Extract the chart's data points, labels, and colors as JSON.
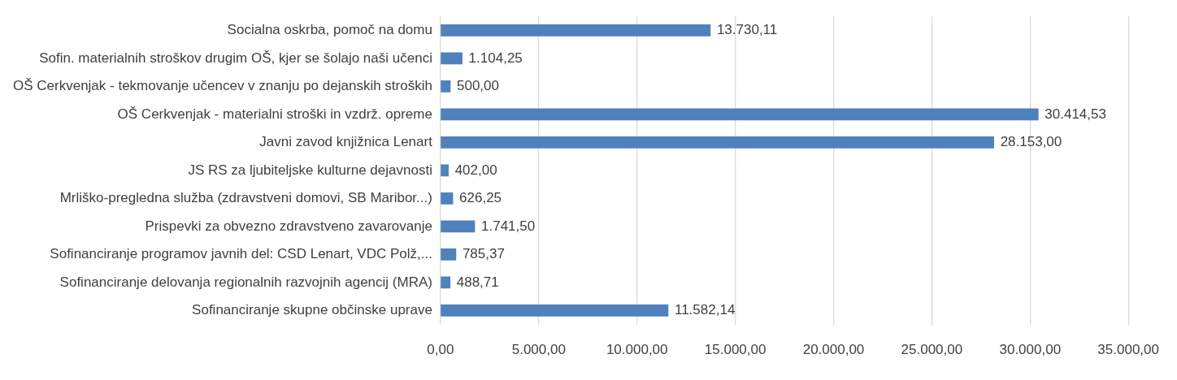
{
  "chart_data": {
    "type": "bar",
    "orientation": "horizontal",
    "categories": [
      "Socialna oskrba, pomoč na domu",
      "Sofin. materialnih stroškov drugim OŠ, kjer se šolajo naši učenci",
      "OŠ Cerkvenjak - tekmovanje učencev v znanju po dejanskih stroških",
      "OŠ Cerkvenjak - materialni stroški in vzdrž. opreme",
      "Javni zavod knjižnica Lenart",
      "JS RS za ljubiteljske kulturne dejavnosti",
      "Mrliško-pregledna služba (zdravstveni domovi, SB Maribor...)",
      "Prispevki za obvezno zdravstveno zavarovanje",
      "Sofinanciranje programov javnih del: CSD Lenart, VDC Polž,...",
      "Sofinanciranje delovanja regionalnih razvojnih agencij (MRA)",
      "Sofinanciranje skupne občinske uprave"
    ],
    "values": [
      13730.11,
      1104.25,
      500,
      30414.53,
      28153,
      402,
      626.25,
      1741.5,
      785.37,
      488.71,
      11582.14
    ],
    "value_labels": [
      "13.730,11",
      "1.104,25",
      "500,00",
      "30.414,53",
      "28.153,00",
      "402,00",
      "626,25",
      "1.741,50",
      "785,37",
      "488,71",
      "11.582,14"
    ],
    "color": "#4f81bd",
    "xlim": [
      0,
      35000
    ],
    "xticks": [
      {
        "value": 0,
        "label": "0,00"
      },
      {
        "value": 5000,
        "label": "5.000,00"
      },
      {
        "value": 10000,
        "label": "10.000,00"
      },
      {
        "value": 15000,
        "label": "15.000,00"
      },
      {
        "value": 20000,
        "label": "20.000,00"
      },
      {
        "value": 25000,
        "label": "25.000,00"
      },
      {
        "value": 30000,
        "label": "30.000,00"
      },
      {
        "value": 35000,
        "label": "35.000,00"
      }
    ],
    "grid": "x",
    "legend": false
  }
}
